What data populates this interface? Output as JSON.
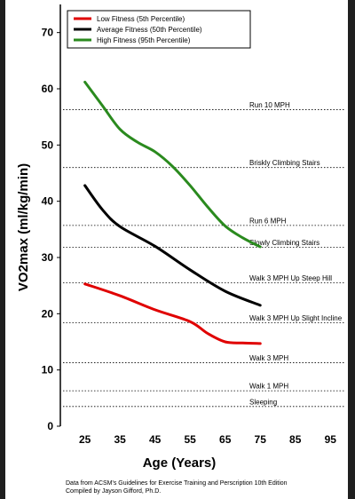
{
  "chart_data": {
    "type": "line",
    "xlabel": "Age (Years)",
    "ylabel": "VO2max (ml/kg/min)",
    "xlim": [
      18,
      100
    ],
    "ylim": [
      0,
      75
    ],
    "xticks": [
      25,
      35,
      45,
      55,
      65,
      75,
      85,
      95
    ],
    "yticks": [
      0,
      10,
      20,
      30,
      40,
      50,
      60,
      70
    ],
    "grid": false,
    "legend_position": "top-left",
    "series": [
      {
        "name": "Low Fitness (5th Percentile)",
        "color": "#e00000",
        "x": [
          25,
          35,
          45,
          55,
          60,
          65,
          70,
          75
        ],
        "y": [
          25.3,
          23.2,
          20.7,
          18.6,
          16.5,
          15.0,
          14.8,
          14.7
        ]
      },
      {
        "name": "Average Fitness (50th Percentile)",
        "color": "#000000",
        "x": [
          25,
          30,
          35,
          45,
          55,
          65,
          75
        ],
        "y": [
          42.8,
          38.5,
          35.5,
          32.0,
          27.8,
          24.0,
          21.5
        ]
      },
      {
        "name": "High Fitness (95th Percentile)",
        "color": "#2a8a1e",
        "x": [
          25,
          30,
          35,
          40,
          45,
          50,
          55,
          60,
          65,
          70,
          75
        ],
        "y": [
          61.2,
          57.0,
          52.8,
          50.5,
          48.8,
          46.2,
          42.8,
          39.0,
          35.6,
          33.5,
          31.9
        ]
      }
    ],
    "reference_lines": [
      {
        "label": "Run 10 MPH",
        "value": 56.3
      },
      {
        "label": "Briskly Climbing Stairs",
        "value": 46.0
      },
      {
        "label": "Run 6 MPH",
        "value": 35.7
      },
      {
        "label": "Slowly Climbing Stairs",
        "value": 31.8
      },
      {
        "label": "Walk 3 MPH Up Steep Hill",
        "value": 25.5
      },
      {
        "label": "Walk 3 MPH Up Slight Incline",
        "value": 18.4
      },
      {
        "label": "Walk 3 MPH",
        "value": 11.3
      },
      {
        "label": "Walk 1 MPH",
        "value": 6.3
      },
      {
        "label": "Sleeping",
        "value": 3.5
      }
    ],
    "footnote": [
      "Data from ACSM's Guidelines for Exercise Training and Perscription 10th Edition",
      "Compiled by Jayson Gifford, Ph.D."
    ]
  }
}
